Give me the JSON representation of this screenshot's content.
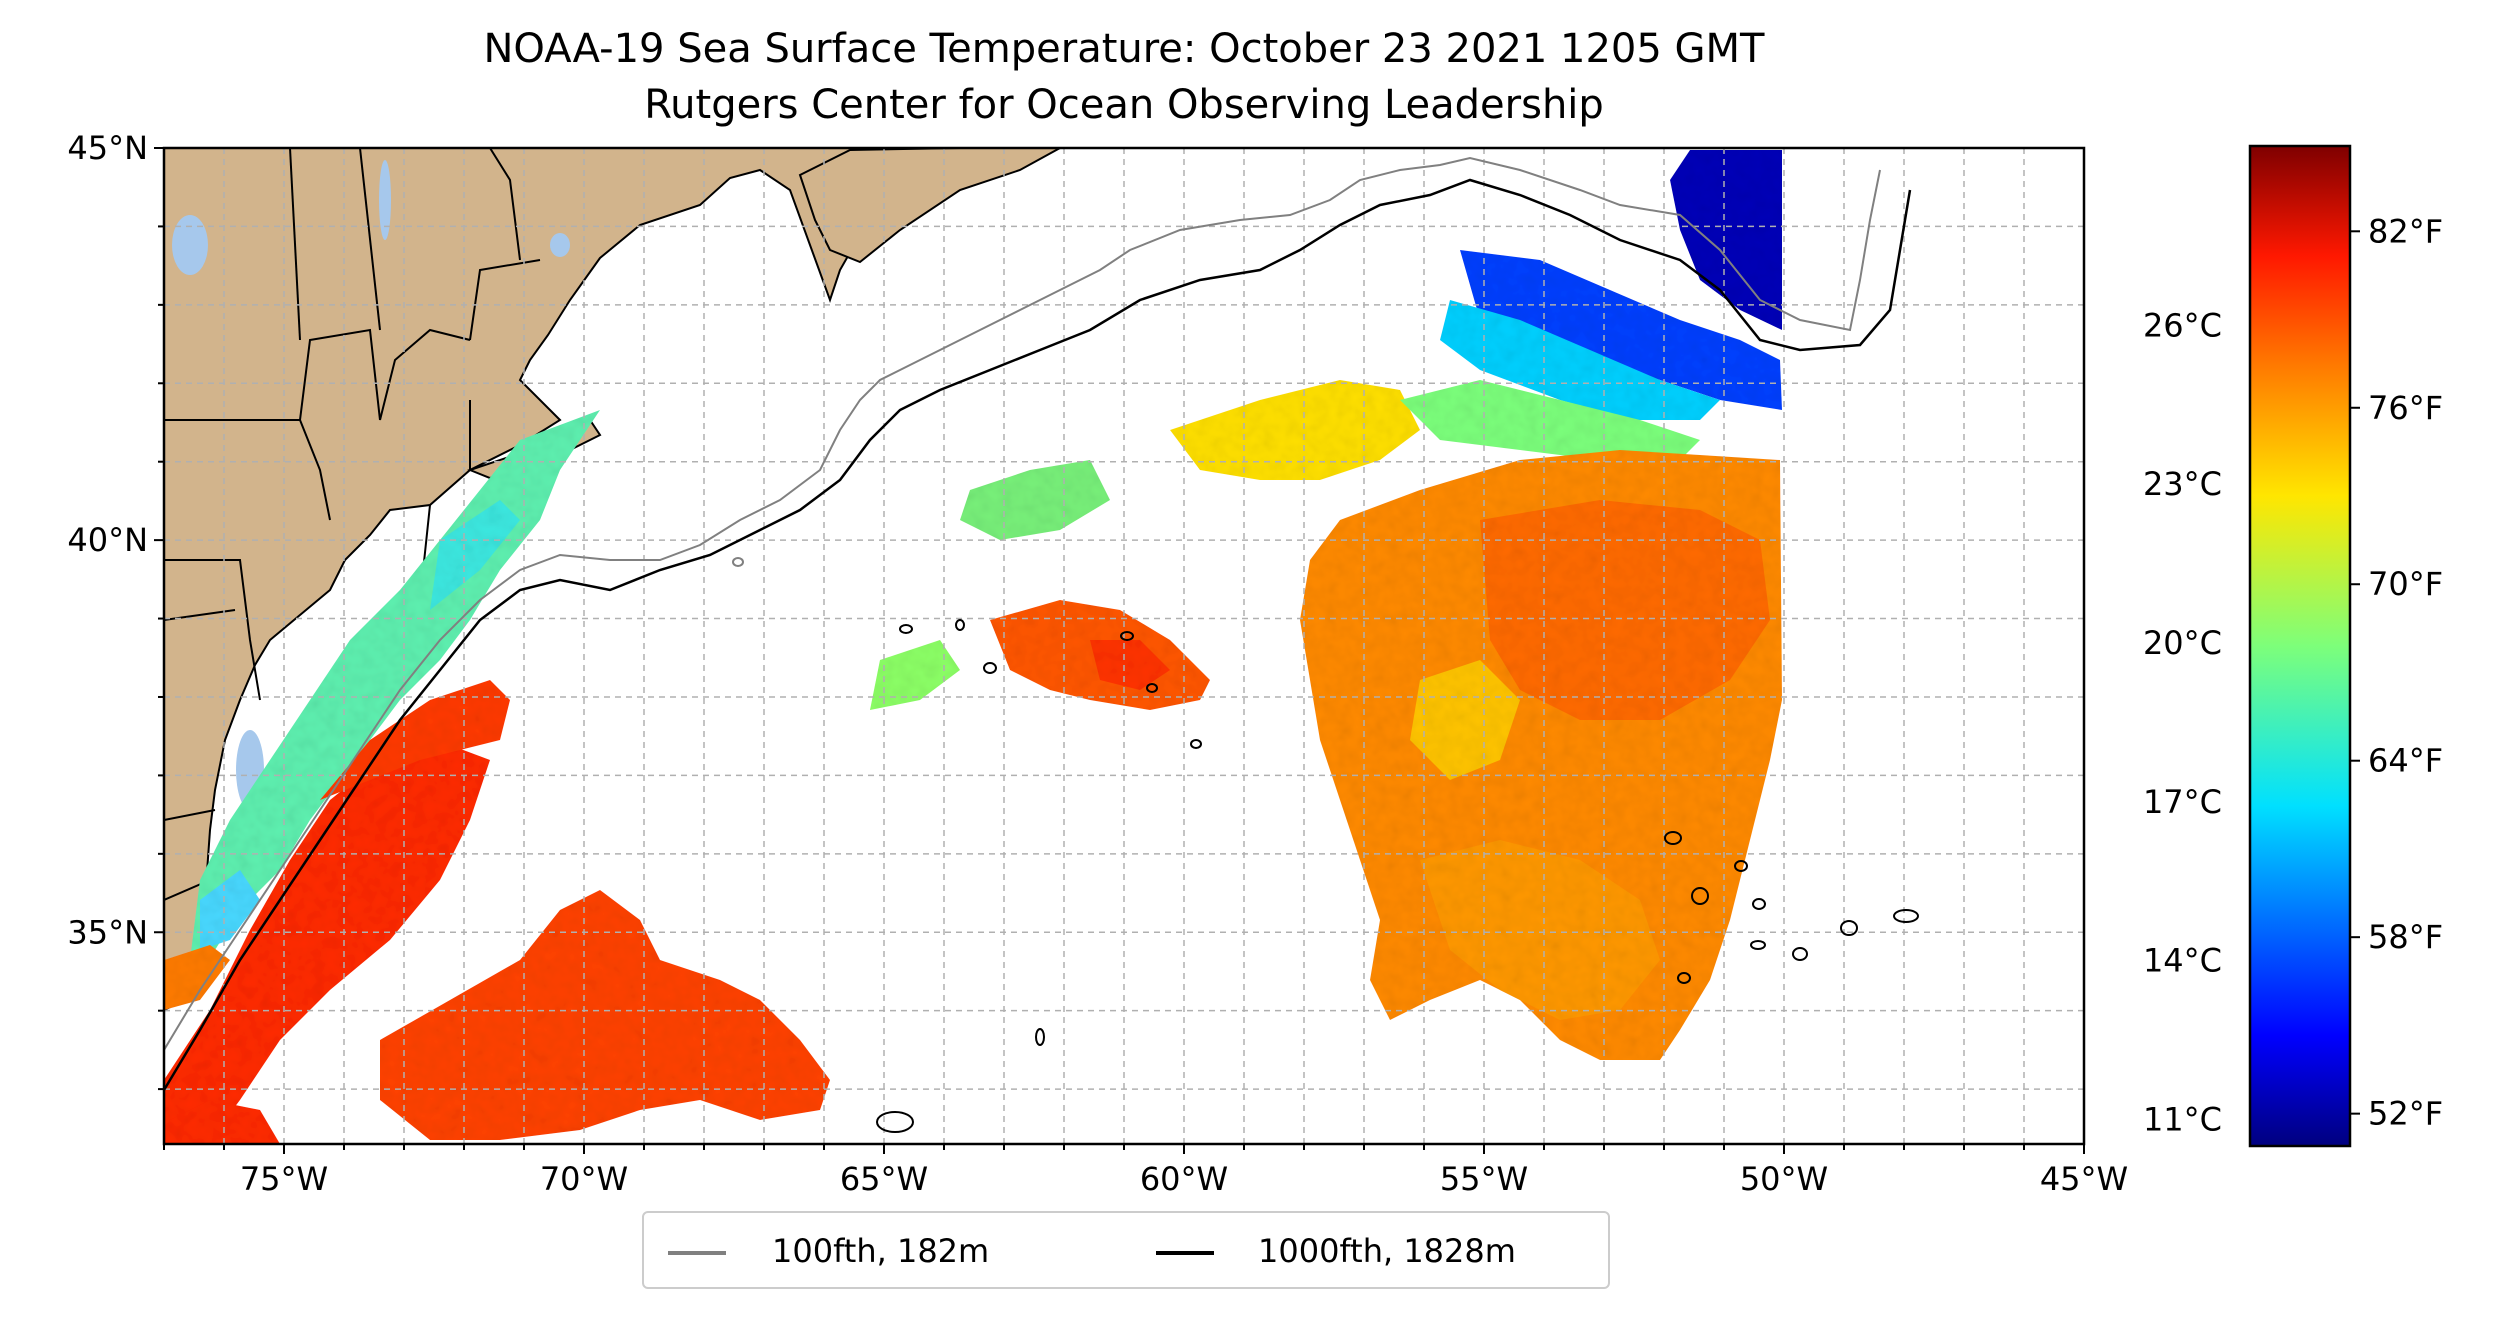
{
  "title": {
    "line1": "NOAA-19 Sea Surface Temperature: October 23 2021 1205 GMT",
    "line2": "Rutgers Center for Ocean Observing Leadership"
  },
  "map": {
    "lon_range": [
      -77,
      -45
    ],
    "lat_range": [
      32.3,
      45
    ],
    "lon_ticks": [
      {
        "value": -75,
        "label": "75°W"
      },
      {
        "value": -70,
        "label": "70°W"
      },
      {
        "value": -65,
        "label": "65°W"
      },
      {
        "value": -60,
        "label": "60°W"
      },
      {
        "value": -55,
        "label": "55°W"
      },
      {
        "value": -50,
        "label": "50°W"
      },
      {
        "value": -45,
        "label": "45°W"
      }
    ],
    "lat_ticks": [
      {
        "value": 45,
        "label": "45°N"
      },
      {
        "value": 40,
        "label": "40°N"
      },
      {
        "value": 35,
        "label": "35°N"
      }
    ],
    "gridlines": true,
    "land_color": "#d2b48c",
    "water_inland_color": "#a6c8ec",
    "coastline_color": "#000000"
  },
  "colorbar": {
    "colormap": "jet",
    "range_f": [
      50.9,
      84.9
    ],
    "fahrenheit_ticks": [
      {
        "value": 82,
        "label": "82°F"
      },
      {
        "value": 76,
        "label": "76°F"
      },
      {
        "value": 70,
        "label": "70°F"
      },
      {
        "value": 64,
        "label": "64°F"
      },
      {
        "value": 58,
        "label": "58°F"
      },
      {
        "value": 52,
        "label": "52°F"
      }
    ],
    "celsius_ticks": [
      {
        "value": 26,
        "label": "26°C"
      },
      {
        "value": 23,
        "label": "23°C"
      },
      {
        "value": 20,
        "label": "20°C"
      },
      {
        "value": 17,
        "label": "17°C"
      },
      {
        "value": 14,
        "label": "14°C"
      },
      {
        "value": 11,
        "label": "11°C"
      }
    ]
  },
  "legend": {
    "items": [
      {
        "label": "100fth, 182m",
        "color": "#808080"
      },
      {
        "label": "1000fth, 1828m",
        "color": "#000000"
      }
    ]
  }
}
